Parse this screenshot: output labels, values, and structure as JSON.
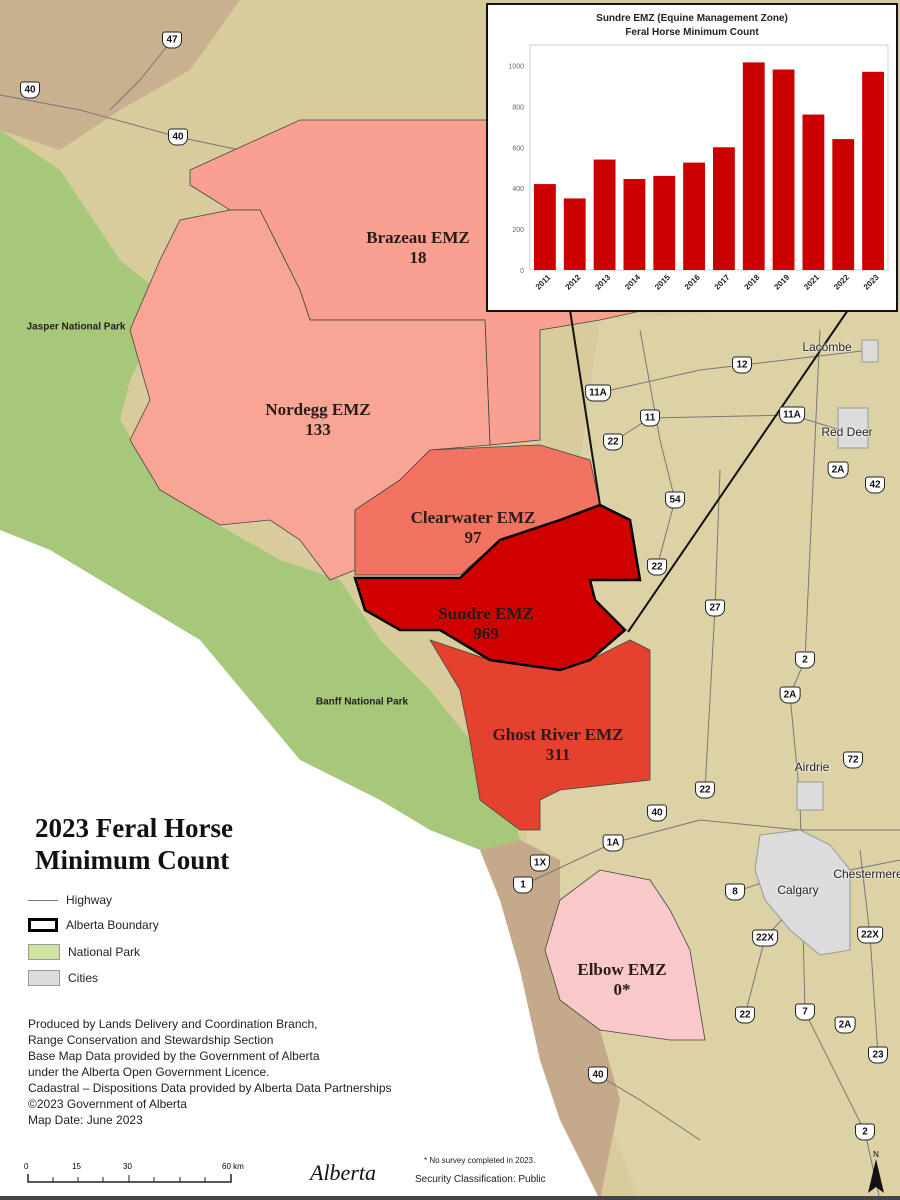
{
  "title": [
    "2023 Feral Horse",
    "Minimum Count"
  ],
  "zones": [
    {
      "name": "Brazeau EMZ",
      "count": "18",
      "color": "#f9a090"
    },
    {
      "name": "Nordegg EMZ",
      "count": "133",
      "color": "#f8a594"
    },
    {
      "name": "Clearwater EMZ",
      "count": "97",
      "color": "#f37362"
    },
    {
      "name": "Sundre EMZ",
      "count": "969",
      "color": "#d10000"
    },
    {
      "name": "Ghost River EMZ",
      "count": "311",
      "color": "#e5412f"
    },
    {
      "name": "Elbow EMZ",
      "count": "0*",
      "color": "#f9c9c9"
    }
  ],
  "parks": [
    "Jasper National Park",
    "Banff National Park"
  ],
  "cities": [
    "Lacombe",
    "Red Deer",
    "Airdrie",
    "Calgary",
    "Chestermere"
  ],
  "highways": [
    "47",
    "40",
    "40",
    "12",
    "11A",
    "11",
    "11A",
    "22",
    "2A",
    "42",
    "54",
    "22",
    "27",
    "2",
    "2A",
    "72",
    "22",
    "40",
    "1A",
    "1X",
    "1",
    "8",
    "22X",
    "22X",
    "22",
    "7",
    "2A",
    "23",
    "40",
    "2"
  ],
  "legend": [
    {
      "label": "Highway",
      "symbol": "line"
    },
    {
      "label": "Alberta Boundary",
      "symbol": "thick-outline"
    },
    {
      "label": "National Park",
      "symbol": "fill",
      "color": "#cfe3a0"
    },
    {
      "label": "Cities",
      "symbol": "fill",
      "color": "#dcdcdc"
    }
  ],
  "credits": [
    "Produced by Lands Delivery and Coordination Branch,",
    "Range Conservation and Stewardship Section",
    "Base Map Data provided by the Government of Alberta",
    "under the Alberta Open Government Licence.",
    "Cadastral – Dispositions Data provided by Alberta Data Partnerships",
    "©2023 Government of Alberta",
    "Map Date: June 2023"
  ],
  "scale_bar": {
    "ticks": [
      "0",
      "15",
      "30",
      "60 km"
    ]
  },
  "footnote": "* No survey completed in 2023.",
  "classification": "Security Classification: Public",
  "logo": "Alberta",
  "north": "N",
  "chart_data": {
    "type": "bar",
    "title": "Sundre EMZ (Equine Management Zone)",
    "subtitle": "Feral Horse Minimum Count",
    "categories": [
      "2011",
      "2012",
      "2013",
      "2014",
      "2015",
      "2016",
      "2017",
      "2018",
      "2019",
      "2021",
      "2022",
      "2023"
    ],
    "values": [
      420,
      350,
      540,
      445,
      460,
      525,
      600,
      1015,
      980,
      760,
      640,
      969
    ],
    "yticks": [
      "0",
      "200",
      "400",
      "600",
      "800",
      "1000"
    ],
    "ylim": [
      0,
      1100
    ],
    "color": "#cc0000",
    "grid": false
  }
}
